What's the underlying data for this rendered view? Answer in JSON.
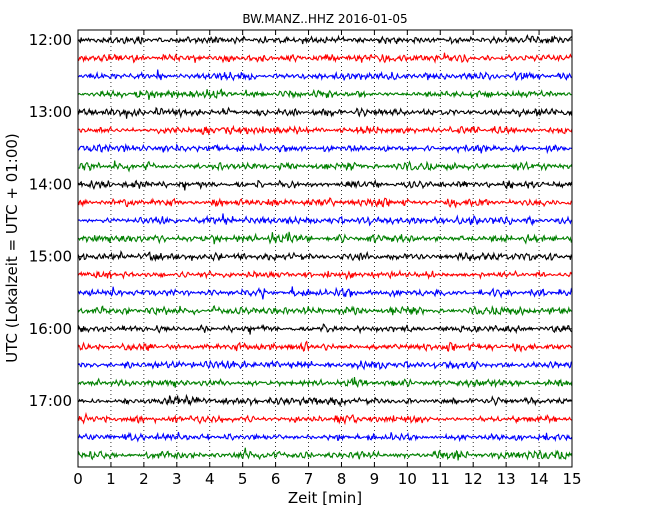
{
  "chart_data": {
    "type": "line",
    "title": "BW.MANZ..HHZ 2016-01-05",
    "xlabel": "Zeit  [min]",
    "ylabel": "UTC (Lokalzeit = UTC + 01:00)",
    "xlim": [
      0,
      15
    ],
    "x_ticks": [
      "0",
      "1",
      "2",
      "3",
      "4",
      "5",
      "6",
      "7",
      "8",
      "9",
      "10",
      "11",
      "12",
      "13",
      "14",
      "15"
    ],
    "y_ticks": [
      "12:00",
      "13:00",
      "14:00",
      "15:00",
      "16:00",
      "17:00"
    ],
    "grid": "vertical dotted",
    "trace_interval_minutes": 15,
    "trace_colors": [
      "#000000",
      "#ff0000",
      "#0000ff",
      "#008000"
    ],
    "traces": [
      {
        "start": "12:00"
      },
      {
        "start": "12:15"
      },
      {
        "start": "12:30"
      },
      {
        "start": "12:45"
      },
      {
        "start": "13:00"
      },
      {
        "start": "13:15"
      },
      {
        "start": "13:30"
      },
      {
        "start": "13:45"
      },
      {
        "start": "14:00"
      },
      {
        "start": "14:15"
      },
      {
        "start": "14:30"
      },
      {
        "start": "14:45"
      },
      {
        "start": "15:00"
      },
      {
        "start": "15:15"
      },
      {
        "start": "15:30"
      },
      {
        "start": "15:45"
      },
      {
        "start": "16:00"
      },
      {
        "start": "16:15"
      },
      {
        "start": "16:30"
      },
      {
        "start": "16:45"
      },
      {
        "start": "17:00"
      },
      {
        "start": "17:15"
      },
      {
        "start": "17:30"
      },
      {
        "start": "17:45"
      }
    ]
  }
}
